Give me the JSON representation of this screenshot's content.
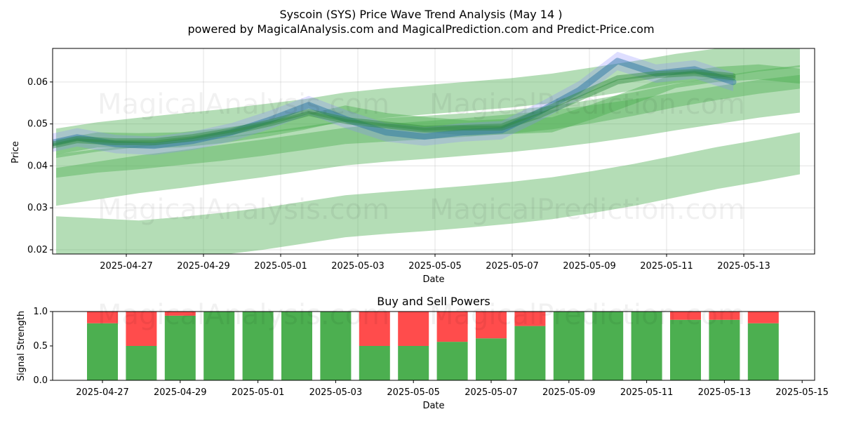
{
  "chart_data": [
    {
      "type": "line",
      "title": "Syscoin (SYS) Price Wave Trend Analysis (May 14 )",
      "subtitle": "powered by MagicalAnalysis.com and MagicalPrediction.com and Predict-Price.com",
      "xlabel": "Date",
      "ylabel": "Price",
      "ylim": [
        0.019,
        0.068
      ],
      "grid": true,
      "y_ticks": [
        "0.02",
        "0.03",
        "0.04",
        "0.05",
        "0.06"
      ],
      "x_ticks": [
        "2025-04-27",
        "2025-04-29",
        "2025-05-01",
        "2025-05-03",
        "2025-05-05",
        "2025-05-07",
        "2025-05-09",
        "2025-05-11",
        "2025-05-13"
      ],
      "x": [
        "2025-04-26",
        "2025-04-27",
        "2025-04-28",
        "2025-04-29",
        "2025-04-30",
        "2025-05-01",
        "2025-05-02",
        "2025-05-03",
        "2025-05-04",
        "2025-05-05",
        "2025-05-06",
        "2025-05-07",
        "2025-05-08",
        "2025-05-09",
        "2025-05-10",
        "2025-05-11",
        "2025-05-12",
        "2025-05-13",
        "2025-05-14"
      ],
      "series": [
        {
          "values": [
            0.0448,
            0.0468,
            0.0452,
            0.0448,
            0.046,
            0.048,
            0.051,
            0.0545,
            0.051,
            0.048,
            0.047,
            0.048,
            0.0485,
            0.053,
            0.058,
            0.065,
            0.062,
            0.063,
            0.06
          ]
        },
        {
          "values": [
            0.0445,
            0.0465,
            0.046,
            0.046,
            0.047,
            0.0485,
            0.0505,
            0.053,
            0.051,
            0.05,
            0.049,
            0.0492,
            0.0495,
            0.053,
            0.057,
            0.061,
            0.062,
            0.0625,
            0.0615
          ]
        },
        {
          "values": [
            0.044,
            0.046,
            0.0455,
            0.0455,
            0.0465,
            0.048,
            0.05,
            0.0525,
            0.0505,
            0.0495,
            0.0485,
            0.049,
            0.049,
            0.052,
            0.056,
            0.06,
            0.0615,
            0.062,
            0.061
          ]
        }
      ],
      "bands": [
        {
          "x_start": "2025-04-25",
          "x_end": "2025-05-14",
          "values": [
            0.0454,
            0.0469,
            0.048,
            0.049,
            0.05,
            0.0512,
            0.0524,
            0.054,
            0.055,
            0.0558,
            0.0566,
            0.0574,
            0.0585,
            0.06,
            0.0615,
            0.0632,
            0.0645,
            0.066,
            0.067
          ],
          "half_width": 0.0035
        },
        {
          "x_start": "2025-04-25",
          "x_end": "2025-05-14",
          "values": [
            0.035,
            0.0365,
            0.038,
            0.0392,
            0.0405,
            0.0418,
            0.0432,
            0.0446,
            0.0455,
            0.0462,
            0.047,
            0.0478,
            0.0488,
            0.05,
            0.0514,
            0.053,
            0.0545,
            0.056,
            0.0572
          ],
          "half_width": 0.0045
        },
        {
          "x_start": "2025-04-25",
          "x_end": "2025-05-14",
          "values": [
            0.023,
            0.0225,
            0.022,
            0.0228,
            0.0238,
            0.025,
            0.0265,
            0.028,
            0.0288,
            0.0295,
            0.0303,
            0.0312,
            0.0323,
            0.0338,
            0.0355,
            0.0375,
            0.0395,
            0.0412,
            0.043
          ],
          "half_width": 0.005
        },
        {
          "x_start": "2025-04-25",
          "x_end": "2025-05-14",
          "values": [
            0.04,
            0.0412,
            0.042,
            0.043,
            0.044,
            0.0452,
            0.0466,
            0.048,
            0.0486,
            0.0492,
            0.0498,
            0.0505,
            0.0515,
            0.053,
            0.0548,
            0.0568,
            0.0585,
            0.06,
            0.0612
          ],
          "half_width": 0.0028
        },
        {
          "x_start": "2025-04-25",
          "x_end": "2025-05-14",
          "values": [
            0.0445,
            0.0462,
            0.046,
            0.0462,
            0.0472,
            0.0486,
            0.0504,
            0.0526,
            0.0508,
            0.0498,
            0.049,
            0.0494,
            0.0498,
            0.053,
            0.0566,
            0.0604,
            0.0618,
            0.0624,
            0.0614
          ],
          "half_width": 0.0018
        }
      ],
      "watermarks": [
        "MagicalAnalysis.com",
        "MagicalPrediction.com"
      ],
      "colors": {
        "band": "#4caf50",
        "line": "#1f6f9f",
        "band_spike": "#8888ff"
      }
    },
    {
      "type": "bar",
      "title": "Buy and Sell Powers",
      "xlabel": "Date",
      "ylabel": "Signal Strength",
      "ylim": [
        0,
        1.0
      ],
      "y_ticks": [
        "0.0",
        "0.5",
        "1.0"
      ],
      "x_ticks": [
        "2025-04-27",
        "2025-04-29",
        "2025-05-01",
        "2025-05-03",
        "2025-05-05",
        "2025-05-07",
        "2025-05-09",
        "2025-05-11",
        "2025-05-13",
        "2025-05-15"
      ],
      "categories": [
        "2025-04-27",
        "2025-04-28",
        "2025-04-29",
        "2025-04-30",
        "2025-05-01",
        "2025-05-02",
        "2025-05-03",
        "2025-05-04",
        "2025-05-05",
        "2025-05-06",
        "2025-05-07",
        "2025-05-08",
        "2025-05-09",
        "2025-05-10",
        "2025-05-11",
        "2025-05-12",
        "2025-05-13",
        "2025-05-14"
      ],
      "series": [
        {
          "values": [
            0.83,
            0.5,
            0.94,
            1.0,
            1.0,
            1.0,
            1.0,
            0.5,
            0.5,
            0.56,
            0.61,
            0.79,
            1.0,
            1.0,
            1.0,
            0.88,
            0.88,
            0.83
          ]
        },
        {
          "values": [
            0.17,
            0.5,
            0.06,
            0.0,
            0.0,
            0.0,
            0.0,
            0.5,
            0.5,
            0.44,
            0.39,
            0.21,
            0.0,
            0.0,
            0.0,
            0.12,
            0.12,
            0.17
          ]
        }
      ],
      "colors": {
        "buy": "#4caf50",
        "sell": "#ff4c4c"
      }
    }
  ]
}
